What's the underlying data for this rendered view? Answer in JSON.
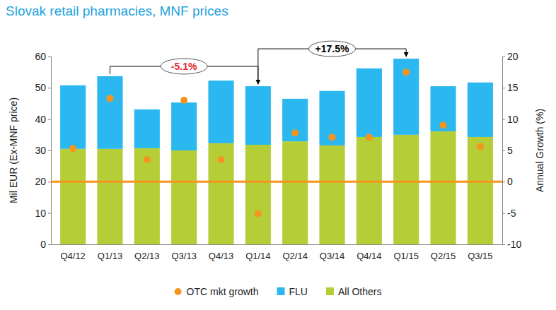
{
  "chart_data": {
    "type": "bar",
    "title": "Slovak retail pharmacies, MNF prices",
    "y_label": "Mil EUR (Ex-MNF price)",
    "y2_label": "Annual Growth (%)",
    "stacked": true,
    "legend": "bottom",
    "categories": [
      "Q4/12",
      "Q1/13",
      "Q2/13",
      "Q3/13",
      "Q4/13",
      "Q1/14",
      "Q2/14",
      "Q3/14",
      "Q4/14",
      "Q1/15",
      "Q2/15",
      "Q3/15"
    ],
    "series": [
      {
        "name": "OTC mkt growth",
        "type": "scatter",
        "axis": "y2",
        "marker": "circle",
        "color": "#f7941d",
        "values": [
          5.3,
          13.3,
          3.5,
          13.0,
          3.5,
          -5.1,
          7.8,
          7.1,
          7.1,
          17.5,
          9.0,
          5.6
        ]
      },
      {
        "name": "FLU",
        "type": "bar",
        "color": "#2bb7ef",
        "values": [
          20.3,
          23.2,
          12.4,
          15.3,
          20.0,
          18.7,
          13.6,
          17.4,
          21.9,
          24.3,
          14.4,
          17.4
        ]
      },
      {
        "name": "All Others",
        "type": "bar",
        "color": "#b5cd36",
        "values": [
          30.5,
          30.5,
          30.7,
          30.0,
          32.3,
          31.8,
          32.9,
          31.6,
          34.3,
          35.0,
          36.1,
          34.3
        ]
      }
    ],
    "ylim": [
      0,
      60
    ],
    "yticks": [
      0,
      10,
      20,
      30,
      40,
      50,
      60
    ],
    "y2lim": [
      -10,
      20
    ],
    "y2ticks": [
      -10,
      -5,
      0,
      5,
      10,
      15,
      20
    ],
    "reference_lines": [
      {
        "axis": "y2",
        "value": 0,
        "color": "#f7941d"
      }
    ],
    "annotations": [
      {
        "text": "-5.1%",
        "from": "Q1/13",
        "to": "Q1/14",
        "color": "#e3262b"
      },
      {
        "text": "+17.5%",
        "from": "Q1/14",
        "to": "Q1/15",
        "color": "#000000"
      }
    ]
  }
}
